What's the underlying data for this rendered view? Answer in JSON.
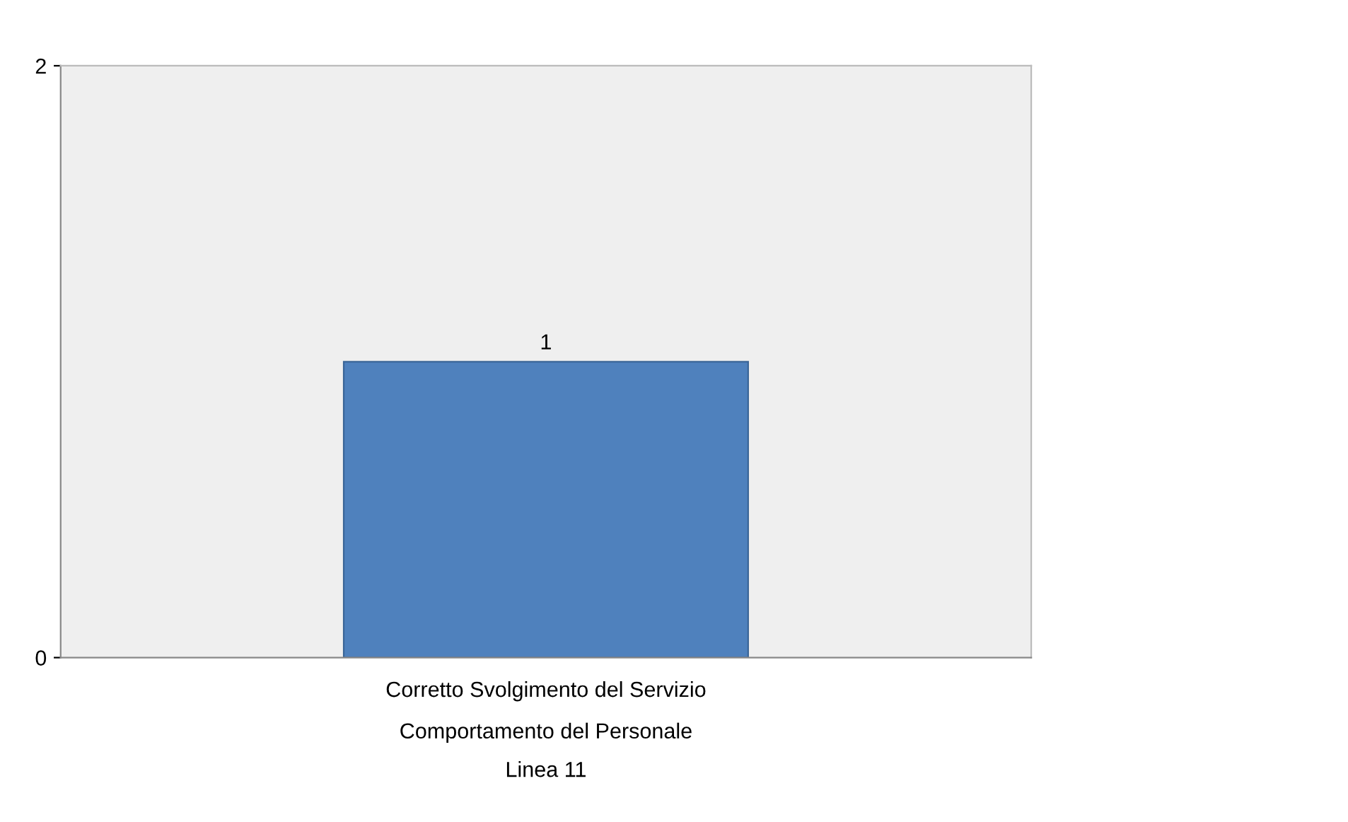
{
  "chart_data": {
    "type": "bar",
    "categories": [
      "Corretto Svolgimento del Servizio"
    ],
    "annotations": [
      "Comportamento del Personale",
      "Linea 11"
    ],
    "values": [
      1
    ],
    "color": "#4f81bd",
    "ylim": [
      0,
      2
    ],
    "yticks": [
      0,
      2
    ],
    "data_labels": true,
    "grid": false
  }
}
